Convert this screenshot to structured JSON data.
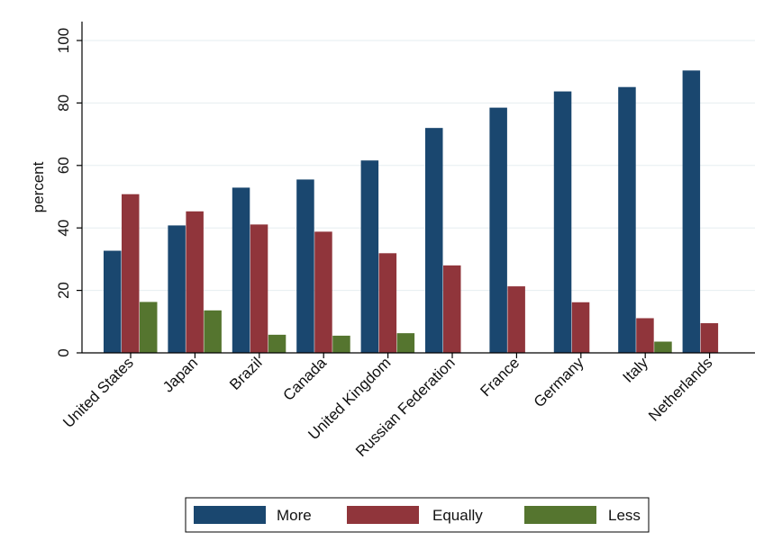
{
  "chart_data": {
    "type": "bar",
    "title": "",
    "xlabel": "",
    "ylabel": "percent",
    "ylim": [
      0,
      100
    ],
    "yticks": [
      0,
      20,
      40,
      60,
      80,
      100
    ],
    "grid": true,
    "legend_position": "bottom",
    "categories": [
      "United States",
      "Japan",
      "Brazil",
      "Canada",
      "United Kingdom",
      "Russian Federation",
      "France",
      "Germany",
      "Italy",
      "Netherlands"
    ],
    "series": [
      {
        "name": "More",
        "color": "#1a476f",
        "values": [
          32.7,
          40.8,
          52.9,
          55.5,
          61.6,
          72.0,
          78.5,
          83.7,
          85.1,
          90.4
        ]
      },
      {
        "name": "Equally",
        "color": "#90353b",
        "values": [
          50.8,
          45.3,
          41.1,
          38.8,
          31.9,
          28.0,
          21.3,
          16.2,
          11.1,
          9.5
        ]
      },
      {
        "name": "Less",
        "color": "#55752f",
        "values": [
          16.3,
          13.6,
          5.8,
          5.5,
          6.3,
          null,
          null,
          null,
          3.6,
          null
        ]
      }
    ]
  }
}
